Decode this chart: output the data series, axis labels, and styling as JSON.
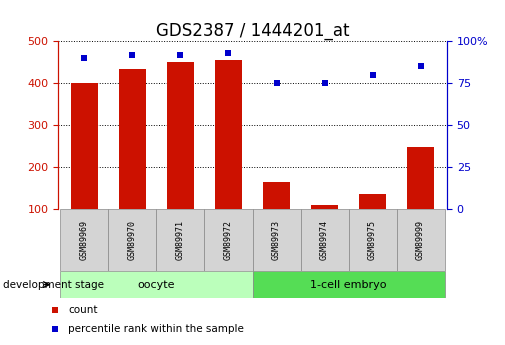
{
  "title": "GDS2387 / 1444201_at",
  "samples": [
    "GSM89969",
    "GSM89970",
    "GSM89971",
    "GSM89972",
    "GSM89973",
    "GSM89974",
    "GSM89975",
    "GSM89999"
  ],
  "counts": [
    400,
    435,
    450,
    455,
    163,
    108,
    135,
    248
  ],
  "percentiles": [
    90,
    92,
    92,
    93,
    75,
    75,
    80,
    85
  ],
  "groups": [
    {
      "label": "oocyte",
      "start": 0,
      "end": 4,
      "color": "#bbffbb"
    },
    {
      "label": "1-cell embryo",
      "start": 4,
      "end": 8,
      "color": "#55dd55"
    }
  ],
  "group_label": "development stage",
  "ylim_left": [
    100,
    500
  ],
  "ylim_right": [
    0,
    100
  ],
  "yticks_left": [
    100,
    200,
    300,
    400,
    500
  ],
  "yticks_right": [
    0,
    25,
    50,
    75,
    100
  ],
  "bar_color": "#cc1100",
  "dot_color": "#0000cc",
  "bar_width": 0.55,
  "legend_items": [
    {
      "label": "count",
      "color": "#cc1100"
    },
    {
      "label": "percentile rank within the sample",
      "color": "#0000cc"
    }
  ],
  "title_fontsize": 12,
  "tick_fontsize": 8,
  "sample_fontsize": 6,
  "group_fontsize": 8,
  "legend_fontsize": 7.5
}
